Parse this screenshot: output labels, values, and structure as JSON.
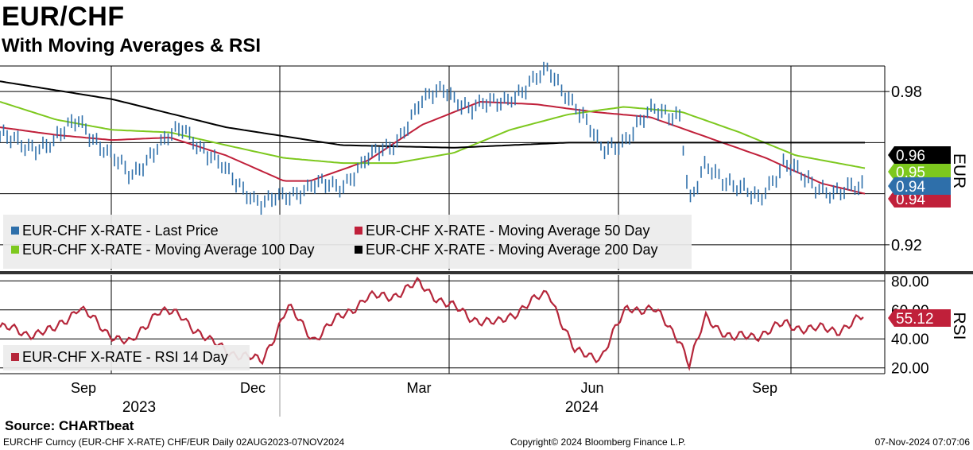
{
  "header": {
    "title": "EUR/CHF",
    "subtitle": "With Moving Averages & RSI"
  },
  "footer": {
    "source": "Source: CHARTbeat",
    "ticker_info": "EURCHF Curncy (EUR-CHF X-RATE) CHF/EUR  Daily 02AUG2023-07NOV2024",
    "copyright": "Copyright© 2024 Bloomberg Finance L.P.",
    "timestamp": "07-Nov-2024 07:07:06"
  },
  "colors": {
    "price": "#2e6faa",
    "ma50": "#c0203a",
    "ma100": "#7dc81e",
    "ma200": "#000000",
    "rsi": "#b5263a",
    "label_black_bg": "#000000",
    "label_green_bg": "#7dc81e",
    "label_blue_bg": "#2e6faa",
    "label_red_bg": "#c0203a"
  },
  "chart_data": [
    {
      "type": "line",
      "panel": "price",
      "y_axis_label": "EUR",
      "ylim": [
        0.91,
        0.99
      ],
      "y_ticks": [
        0.92,
        0.98
      ],
      "grid": true,
      "legend_position": "bottom-left",
      "x_ticks": [
        "Sep",
        "Dec",
        "Mar",
        "Jun",
        "Sep"
      ],
      "year_labels": [
        "2023",
        "2024"
      ],
      "series": [
        {
          "name": "EUR-CHF X-RATE - Last Price",
          "style": "bars",
          "x": [
            "2023-08-02",
            "2023-08-16",
            "2023-08-30",
            "2023-09-13",
            "2023-09-27",
            "2023-10-11",
            "2023-10-25",
            "2023-11-08",
            "2023-11-22",
            "2023-12-06",
            "2023-12-20",
            "2024-01-03",
            "2024-01-17",
            "2024-01-31",
            "2024-02-14",
            "2024-02-28",
            "2024-03-13",
            "2024-03-27",
            "2024-04-10",
            "2024-04-24",
            "2024-05-08",
            "2024-05-22",
            "2024-06-05",
            "2024-06-19",
            "2024-07-03",
            "2024-07-17",
            "2024-07-31",
            "2024-08-05",
            "2024-08-14",
            "2024-08-28",
            "2024-09-11",
            "2024-09-25",
            "2024-10-09",
            "2024-10-23",
            "2024-11-07"
          ],
          "values": [
            0.963,
            0.958,
            0.96,
            0.969,
            0.957,
            0.947,
            0.958,
            0.966,
            0.955,
            0.945,
            0.936,
            0.939,
            0.944,
            0.942,
            0.954,
            0.958,
            0.975,
            0.981,
            0.973,
            0.976,
            0.98,
            0.989,
            0.974,
            0.958,
            0.961,
            0.974,
            0.97,
            0.935,
            0.952,
            0.943,
            0.938,
            0.952,
            0.944,
            0.94,
            0.943
          ]
        },
        {
          "name": "EUR-CHF X-RATE - Moving Average 50 Day",
          "x": [
            "2023-08-02",
            "2023-09-01",
            "2023-10-01",
            "2023-11-01",
            "2023-12-01",
            "2024-01-01",
            "2024-01-15",
            "2024-02-15",
            "2024-03-15",
            "2024-04-15",
            "2024-05-15",
            "2024-06-15",
            "2024-07-15",
            "2024-08-15",
            "2024-09-15",
            "2024-10-15",
            "2024-11-07"
          ],
          "values": [
            0.966,
            0.963,
            0.961,
            0.962,
            0.955,
            0.945,
            0.945,
            0.953,
            0.967,
            0.976,
            0.975,
            0.972,
            0.97,
            0.962,
            0.954,
            0.944,
            0.94
          ]
        },
        {
          "name": "EUR-CHF X-RATE - Moving Average 100 Day",
          "x": [
            "2023-08-02",
            "2023-09-01",
            "2023-10-01",
            "2023-11-01",
            "2023-12-01",
            "2024-01-01",
            "2024-02-01",
            "2024-03-01",
            "2024-04-01",
            "2024-05-01",
            "2024-06-01",
            "2024-07-01",
            "2024-08-01",
            "2024-09-01",
            "2024-10-01",
            "2024-11-07"
          ],
          "values": [
            0.976,
            0.969,
            0.965,
            0.964,
            0.959,
            0.954,
            0.952,
            0.952,
            0.956,
            0.965,
            0.971,
            0.974,
            0.972,
            0.964,
            0.955,
            0.95
          ]
        },
        {
          "name": "EUR-CHF X-RATE - Moving Average 200 Day",
          "x": [
            "2023-08-02",
            "2023-10-01",
            "2023-12-01",
            "2024-02-01",
            "2024-04-01",
            "2024-06-01",
            "2024-08-01",
            "2024-11-07"
          ],
          "values": [
            0.984,
            0.977,
            0.966,
            0.959,
            0.958,
            0.96,
            0.96,
            0.96
          ]
        }
      ],
      "last_value_labels": [
        {
          "series": "EUR-CHF X-RATE - Moving Average 200 Day",
          "text": "0.96",
          "value": 0.96
        },
        {
          "series": "EUR-CHF X-RATE - Moving Average 100 Day",
          "text": "0.95",
          "value": 0.95
        },
        {
          "series": "EUR-CHF X-RATE - Last Price",
          "text": "0.94",
          "value": 0.94
        },
        {
          "series": "EUR-CHF X-RATE - Moving Average 50 Day",
          "text": "0.94",
          "value": 0.94
        }
      ]
    },
    {
      "type": "line",
      "panel": "rsi",
      "y_axis_label": "RSI",
      "ylim": [
        16,
        84
      ],
      "y_ticks": [
        "20.00",
        "40.00",
        "60.00",
        "80.00"
      ],
      "grid": true,
      "legend_position": "bottom-left",
      "series": [
        {
          "name": "EUR-CHF X-RATE - RSI 14 Day",
          "x": [
            "2023-08-02",
            "2023-08-16",
            "2023-08-30",
            "2023-09-13",
            "2023-09-27",
            "2023-10-11",
            "2023-10-25",
            "2023-11-08",
            "2023-11-22",
            "2023-12-06",
            "2023-12-20",
            "2024-01-03",
            "2024-01-17",
            "2024-01-31",
            "2024-02-14",
            "2024-02-28",
            "2024-03-13",
            "2024-03-27",
            "2024-04-10",
            "2024-04-24",
            "2024-05-08",
            "2024-05-22",
            "2024-06-05",
            "2024-06-19",
            "2024-07-03",
            "2024-07-17",
            "2024-07-31",
            "2024-08-05",
            "2024-08-14",
            "2024-08-28",
            "2024-09-11",
            "2024-09-25",
            "2024-10-09",
            "2024-10-23",
            "2024-11-07"
          ],
          "values": [
            48,
            44,
            45,
            62,
            46,
            36,
            60,
            55,
            38,
            30,
            24,
            62,
            40,
            55,
            68,
            70,
            78,
            65,
            55,
            50,
            62,
            72,
            30,
            28,
            62,
            60,
            40,
            22,
            55,
            40,
            43,
            50,
            47,
            46,
            55.12
          ]
        }
      ],
      "last_value_labels": [
        {
          "text": "55.12",
          "value": 55.12
        }
      ]
    }
  ]
}
